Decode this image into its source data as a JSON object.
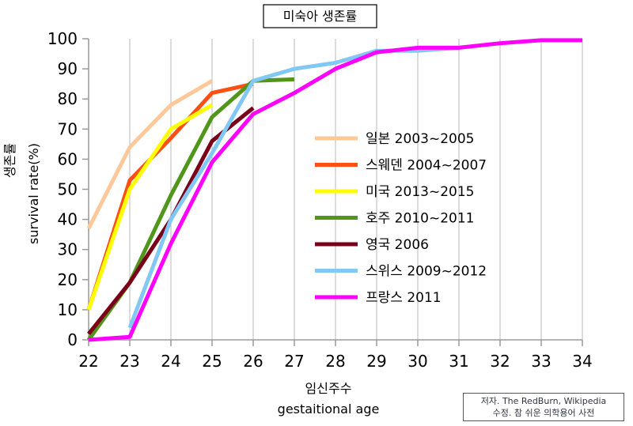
{
  "chart_data": {
    "type": "line",
    "title": "미숙아 생존률",
    "xlabel": [
      "임신주수",
      "gestaitional age"
    ],
    "ylabel": [
      "생존률",
      "survival rate(%)"
    ],
    "xlim": [
      22,
      34
    ],
    "ylim": [
      0,
      100
    ],
    "x_ticks": [
      22,
      23,
      24,
      25,
      26,
      27,
      28,
      29,
      30,
      31,
      32,
      33,
      34
    ],
    "y_ticks": [
      0,
      10,
      20,
      30,
      40,
      50,
      60,
      70,
      80,
      90,
      100
    ],
    "grid": "vertical",
    "legend_position": "center-right",
    "series": [
      {
        "name": "일본 2003~2005",
        "color": "#ffc89a",
        "x": [
          22,
          23,
          24,
          25
        ],
        "y": [
          37,
          64,
          78,
          86
        ]
      },
      {
        "name": "스웨덴 2004~2007",
        "color": "#ff4f14",
        "x": [
          22,
          23,
          24,
          25,
          26
        ],
        "y": [
          10,
          53,
          67,
          82,
          85
        ]
      },
      {
        "name": "미국 2013~2015",
        "color": "#ffff00",
        "x": [
          22,
          23,
          24,
          25
        ],
        "y": [
          10,
          50,
          70,
          78
        ]
      },
      {
        "name": "호주 2010~2011",
        "color": "#4f961a",
        "x": [
          22,
          23,
          24,
          25,
          26,
          27
        ],
        "y": [
          0,
          19,
          48,
          74,
          86,
          86.5
        ]
      },
      {
        "name": "영국 2006",
        "color": "#7a0019",
        "x": [
          22,
          23,
          24,
          25,
          26
        ],
        "y": [
          2,
          19,
          40,
          66,
          77
        ]
      },
      {
        "name": "스위스 2009~2012",
        "color": "#82c8f5",
        "x": [
          23,
          24,
          25,
          26,
          27,
          28,
          29,
          30,
          31
        ],
        "y": [
          4,
          40,
          62,
          86,
          90,
          92,
          96,
          96,
          97
        ]
      },
      {
        "name": "프랑스 2011",
        "color": "#ff00ff",
        "x": [
          22,
          23,
          24,
          25,
          26,
          27,
          28,
          29,
          30,
          31,
          32,
          33,
          34
        ],
        "y": [
          0,
          1,
          32,
          59,
          75,
          82,
          90,
          95.5,
          97,
          97,
          98.5,
          99.5,
          99.5
        ]
      }
    ]
  },
  "credit": {
    "line1": "저자. The RedBurn, Wikipedia",
    "line2": "수정. 참 쉬운 의학용어 사전"
  }
}
